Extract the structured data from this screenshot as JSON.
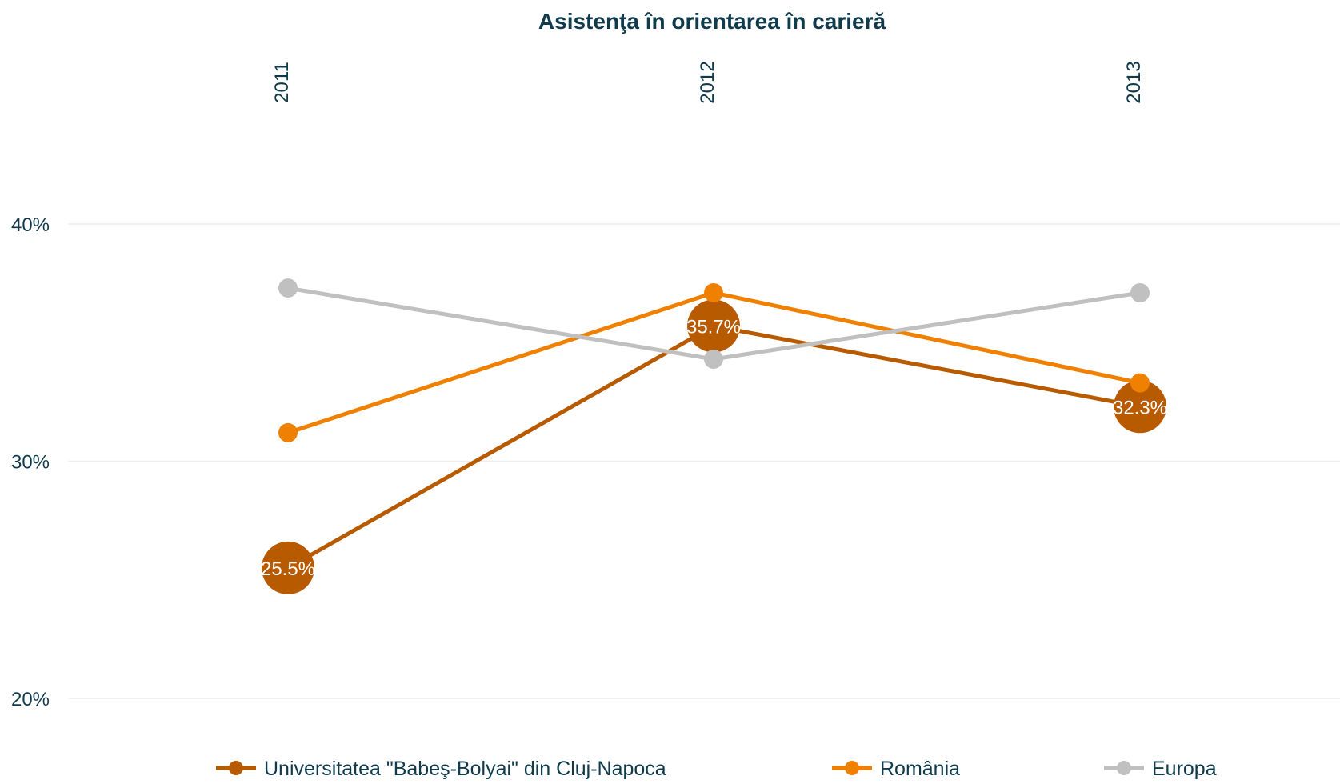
{
  "chart_data": {
    "type": "line",
    "title": "Asistenţa în orientarea în carieră",
    "categories": [
      "2011",
      "2012",
      "2013"
    ],
    "yticks": [
      "20%",
      "30%",
      "40%"
    ],
    "ylim": [
      0.17,
      0.435
    ],
    "grid": true,
    "legend_position": "bottom",
    "series": [
      {
        "name": "Universitatea \"Babeş-Bolyai\" din Cluj-Napoca",
        "values": [
          0.255,
          0.357,
          0.323
        ],
        "labels": [
          "25.5%",
          "35.7%",
          "32.3%"
        ],
        "color": "#b85a00",
        "big_markers": true
      },
      {
        "name": "România",
        "values": [
          0.312,
          0.371,
          0.333
        ],
        "color": "#f08000",
        "big_markers": false
      },
      {
        "name": "Europa",
        "values": [
          0.373,
          0.343,
          0.371
        ],
        "color": "#c0c0c0",
        "big_markers": false
      }
    ],
    "colors": {
      "title": "#0f3b4c",
      "axis_text": "#0f3b4c",
      "grid": "#eeeeee",
      "label_text": "#ffffff"
    }
  }
}
